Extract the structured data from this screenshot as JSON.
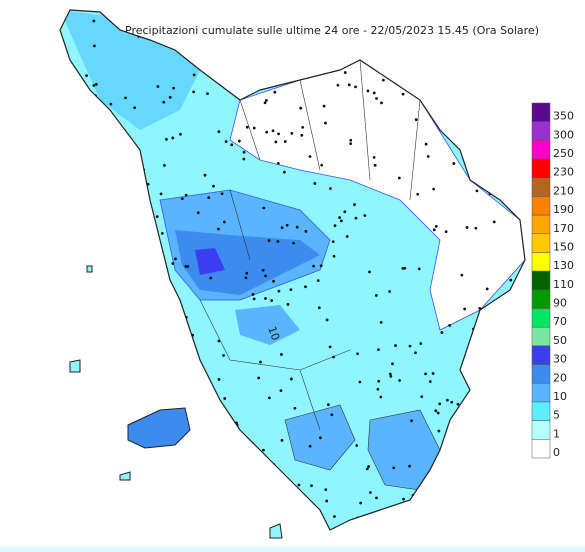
{
  "title": "Precipitazioni cumulate sulle ultime 24 ore - 22/05/2023 15.45 (Ora Solare)",
  "contour_label": "10",
  "legend": {
    "levels": [
      {
        "label": "350",
        "color": "#5a0a8c"
      },
      {
        "label": "300",
        "color": "#9b30d0"
      },
      {
        "label": "250",
        "color": "#ff00c8"
      },
      {
        "label": "230",
        "color": "#ff0000"
      },
      {
        "label": "210",
        "color": "#b5651d"
      },
      {
        "label": "190",
        "color": "#ff7f00"
      },
      {
        "label": "170",
        "color": "#ffa500"
      },
      {
        "label": "150",
        "color": "#ffc800"
      },
      {
        "label": "130",
        "color": "#ffff00"
      },
      {
        "label": "110",
        "color": "#006400"
      },
      {
        "label": "90",
        "color": "#009a00"
      },
      {
        "label": "70",
        "color": "#00e664"
      },
      {
        "label": "50",
        "color": "#78e6a0"
      },
      {
        "label": "30",
        "color": "#3c3cf0"
      },
      {
        "label": "20",
        "color": "#3c8cf0"
      },
      {
        "label": "10",
        "color": "#5ab4ff"
      },
      {
        "label": "5",
        "color": "#5af0ff"
      },
      {
        "label": "1",
        "color": "#b4ffff"
      },
      {
        "label": "0",
        "color": "#ffffff"
      }
    ]
  }
}
